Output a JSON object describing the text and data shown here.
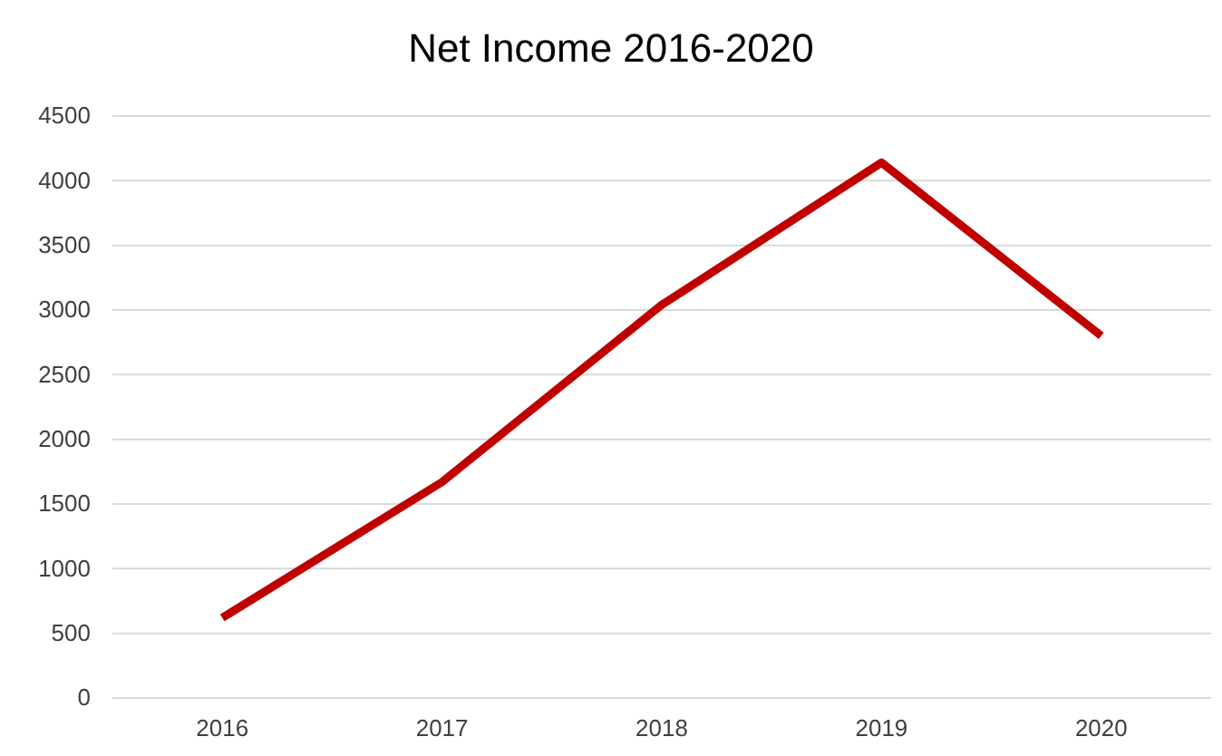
{
  "chart_data": {
    "type": "line",
    "title": "Net Income 2016-2020",
    "categories": [
      "2016",
      "2017",
      "2018",
      "2019",
      "2020"
    ],
    "series": [
      {
        "color": "#c00000",
        "values": [
          620,
          1670,
          3040,
          4140,
          2800
        ]
      }
    ],
    "ylim": [
      0,
      4500
    ],
    "yticks": [
      0,
      500,
      1000,
      1500,
      2000,
      2500,
      3000,
      3500,
      4000,
      4500
    ],
    "grid": "y",
    "legend": false,
    "marker": "none",
    "line_style": "solid"
  }
}
